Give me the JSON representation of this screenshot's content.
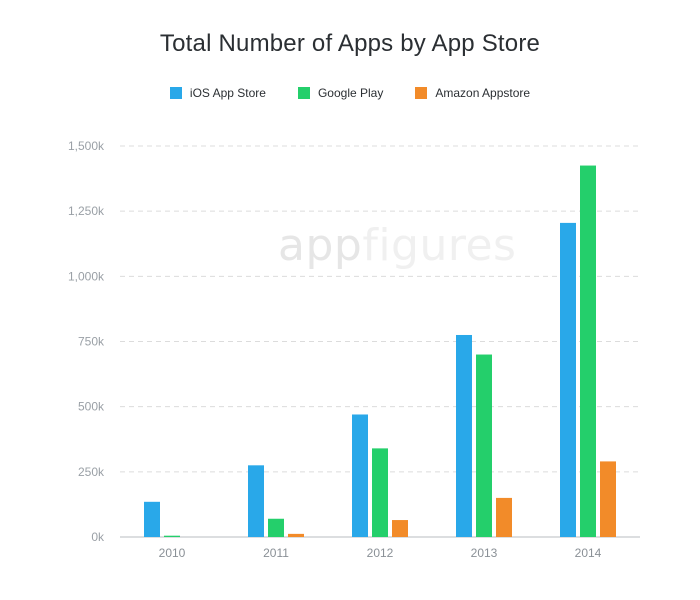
{
  "chart_data": {
    "type": "bar",
    "title": "Total Number of Apps by App Store",
    "categories": [
      "2010",
      "2011",
      "2012",
      "2013",
      "2014"
    ],
    "series": [
      {
        "name": "iOS App Store",
        "color": "#29a8e9",
        "values": [
          135000,
          275000,
          470000,
          775000,
          1205000
        ]
      },
      {
        "name": "Google Play",
        "color": "#24cf6b",
        "values": [
          5000,
          70000,
          340000,
          700000,
          1425000
        ]
      },
      {
        "name": "Amazon Appstore",
        "color": "#f28b29",
        "values": [
          0,
          12000,
          65000,
          150000,
          290000
        ]
      }
    ],
    "yticks": [
      0,
      250000,
      500000,
      750000,
      1000000,
      1250000,
      1500000
    ],
    "ytick_labels": [
      "0k",
      "250k",
      "500k",
      "750k",
      "1,000k",
      "1,250k",
      "1,500k"
    ],
    "ylim": [
      0,
      1500000
    ],
    "grid": true,
    "legend_position": "top"
  },
  "watermark": {
    "part1": "app",
    "part2": "figures"
  }
}
